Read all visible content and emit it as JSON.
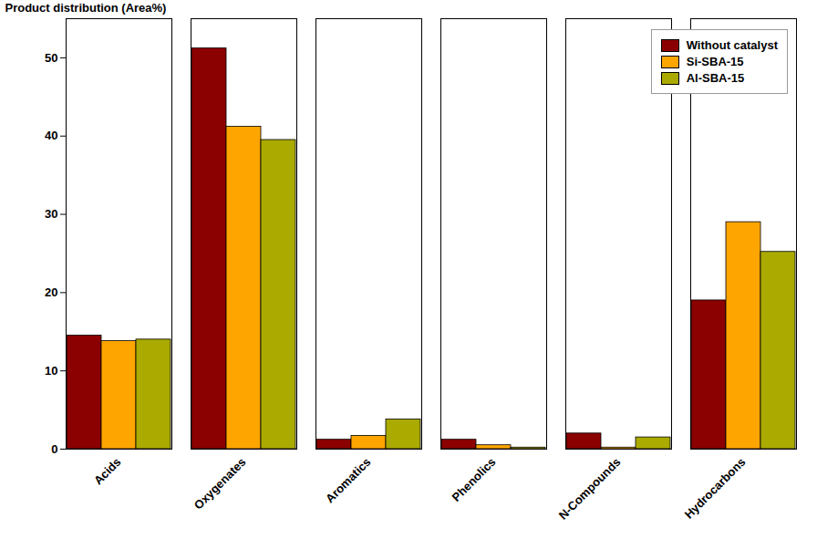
{
  "chart_data": {
    "type": "bar",
    "categories": [
      "Acids",
      "Oxygenates",
      "Aromatics",
      "Phenolics",
      "N-Compounds",
      "Hydrocarbons"
    ],
    "series": [
      {
        "name": "Without catalyst",
        "color": "#8B0000",
        "values": [
          14.5,
          51.2,
          1.2,
          1.2,
          2.0,
          19.0
        ]
      },
      {
        "name": "Si-SBA-15",
        "color": "#FFA500",
        "values": [
          13.8,
          41.2,
          1.7,
          0.5,
          0.2,
          29.0
        ]
      },
      {
        "name": "Al-SBA-15",
        "color": "#AAAA00",
        "values": [
          14.0,
          39.5,
          3.8,
          0.2,
          1.5,
          25.2
        ]
      }
    ],
    "ylabel": "Product distribution (Area%)",
    "ylim": [
      0,
      55
    ],
    "yticks": [
      0,
      10,
      20,
      30,
      40,
      50
    ],
    "grid": false,
    "legend": "upper right"
  }
}
